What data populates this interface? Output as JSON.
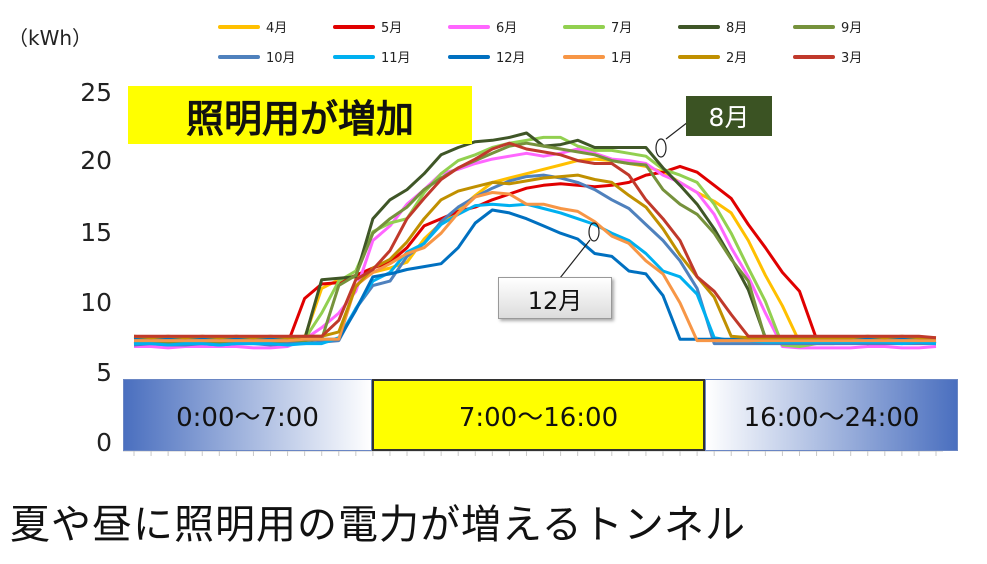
{
  "unit_label": "（kWh）",
  "annotations": {
    "title_box": "照明用が増加",
    "aug_label": "8月",
    "dec_label": "12月"
  },
  "time_bands": {
    "left": "0:00～7:00",
    "middle": "7:00～16:00",
    "right": "16:00～24:00"
  },
  "caption": "夏や昼に照明用の電力が増えるトンネル",
  "chart_data": {
    "type": "line",
    "x": [
      0,
      1,
      2,
      3,
      4,
      5,
      6,
      7,
      8,
      9,
      10,
      11,
      12,
      13,
      14,
      15,
      16,
      17,
      18,
      19,
      20,
      21,
      22,
      23,
      24,
      25,
      26,
      27,
      28,
      29,
      30,
      31,
      32,
      33,
      34,
      35,
      36,
      37,
      38,
      39,
      40,
      41,
      42,
      43,
      44,
      45,
      46,
      47
    ],
    "yticks": [
      0,
      5,
      10,
      15,
      20,
      25
    ],
    "ylim": [
      0,
      25
    ],
    "series": [
      {
        "name": "4月",
        "color": "#ffc000",
        "values": [
          7.7,
          7.8,
          7.7,
          7.7,
          7.7,
          7.8,
          7.7,
          7.7,
          7.7,
          7.7,
          7.8,
          11.2,
          11.8,
          12.0,
          12.3,
          12.6,
          13.0,
          14.6,
          15.7,
          16.6,
          17.6,
          18.5,
          18.8,
          19.1,
          19.4,
          19.7,
          20.0,
          20.1,
          20.0,
          19.8,
          19.6,
          19.2,
          18.5,
          17.8,
          17.2,
          16.4,
          14.5,
          12.1,
          10.0,
          7.5,
          7.5,
          7.6,
          7.6,
          7.6,
          7.6,
          7.6,
          7.7,
          7.6
        ]
      },
      {
        "name": "5月",
        "color": "#e00000",
        "values": [
          7.4,
          7.5,
          7.5,
          7.5,
          7.5,
          7.5,
          7.4,
          7.5,
          7.5,
          7.4,
          10.5,
          11.5,
          11.6,
          12.1,
          12.6,
          13.0,
          14.0,
          15.5,
          16.0,
          16.5,
          16.8,
          17.3,
          17.7,
          18.1,
          18.3,
          18.4,
          18.3,
          18.2,
          18.3,
          18.5,
          19.0,
          19.2,
          19.6,
          19.2,
          18.3,
          17.4,
          15.6,
          14.0,
          12.3,
          11.0,
          7.7,
          7.7,
          7.7,
          7.7,
          7.7,
          7.6,
          7.6,
          7.5
        ]
      },
      {
        "name": "6月",
        "color": "#ff66ff",
        "values": [
          7.2,
          7.2,
          7.1,
          7.2,
          7.2,
          7.2,
          7.2,
          7.1,
          7.1,
          7.2,
          7.7,
          8.5,
          9.5,
          11.0,
          14.5,
          15.5,
          17.0,
          18.0,
          19.1,
          19.4,
          19.8,
          20.1,
          20.3,
          20.5,
          20.3,
          20.5,
          20.8,
          20.5,
          20.1,
          20.0,
          19.8,
          19.0,
          18.5,
          17.8,
          16.3,
          14.0,
          12.0,
          9.5,
          7.2,
          7.1,
          7.1,
          7.1,
          7.1,
          7.2,
          7.2,
          7.1,
          7.1,
          7.2
        ]
      },
      {
        "name": "7月",
        "color": "#92d050",
        "values": [
          7.6,
          7.6,
          7.6,
          7.6,
          7.6,
          7.5,
          7.6,
          7.6,
          7.6,
          7.6,
          7.7,
          9.5,
          11.7,
          12.4,
          15.1,
          15.7,
          16.0,
          17.8,
          19.1,
          20.0,
          20.4,
          20.9,
          21.2,
          21.4,
          21.6,
          21.6,
          21.0,
          20.7,
          20.7,
          20.5,
          20.3,
          19.4,
          19.0,
          18.5,
          17.0,
          15.0,
          12.6,
          10.3,
          7.3,
          7.2,
          7.4,
          7.4,
          7.5,
          7.4,
          7.5,
          7.5,
          7.5,
          7.4
        ]
      },
      {
        "name": "8月",
        "color": "#3f5627",
        "values": [
          7.7,
          7.7,
          7.7,
          7.7,
          7.7,
          7.7,
          7.7,
          7.7,
          7.7,
          7.7,
          7.7,
          11.8,
          11.9,
          12.0,
          16.0,
          17.3,
          18.0,
          19.1,
          20.4,
          20.9,
          21.3,
          21.4,
          21.6,
          21.9,
          21.0,
          21.1,
          21.4,
          20.9,
          20.9,
          20.9,
          20.9,
          19.5,
          18.3,
          17.0,
          15.3,
          13.3,
          11.1,
          7.8,
          7.7,
          7.7,
          7.7,
          7.7,
          7.7,
          7.7,
          7.7,
          7.7,
          7.7,
          7.7
        ]
      },
      {
        "name": "9月",
        "color": "#76923c",
        "values": [
          7.5,
          7.5,
          7.5,
          7.5,
          7.5,
          7.5,
          7.5,
          7.5,
          7.5,
          7.5,
          7.6,
          7.7,
          11.4,
          12.1,
          15.0,
          16.0,
          16.8,
          18.0,
          18.8,
          19.5,
          20.0,
          20.5,
          21.0,
          21.2,
          21.0,
          20.8,
          20.6,
          20.4,
          20.0,
          19.8,
          19.7,
          18.0,
          17.0,
          16.3,
          15.0,
          13.2,
          11.7,
          7.7,
          7.5,
          7.5,
          7.5,
          7.5,
          7.5,
          7.4,
          7.5,
          7.5,
          7.5,
          7.4
        ]
      },
      {
        "name": "10月",
        "color": "#4f81bd",
        "values": [
          7.3,
          7.4,
          7.3,
          7.3,
          7.4,
          7.3,
          7.4,
          7.4,
          7.3,
          7.4,
          7.4,
          7.5,
          7.6,
          9.8,
          11.4,
          11.7,
          13.4,
          14.3,
          15.8,
          16.8,
          17.5,
          18.1,
          18.6,
          18.9,
          19.0,
          18.8,
          18.5,
          18.0,
          17.3,
          16.7,
          15.6,
          14.5,
          13.1,
          11.2,
          7.4,
          7.4,
          7.4,
          7.4,
          7.4,
          7.4,
          7.4,
          7.4,
          7.4,
          7.4,
          7.4,
          7.4,
          7.4,
          7.4
        ]
      },
      {
        "name": "11月",
        "color": "#00b0f0",
        "values": [
          7.4,
          7.4,
          7.3,
          7.4,
          7.4,
          7.3,
          7.4,
          7.4,
          7.4,
          7.3,
          7.4,
          7.4,
          7.8,
          9.8,
          11.7,
          12.3,
          13.7,
          14.3,
          15.6,
          16.3,
          16.9,
          17.0,
          16.9,
          17.0,
          16.7,
          16.4,
          16.0,
          15.6,
          15.0,
          14.5,
          13.6,
          12.4,
          12.0,
          10.8,
          7.8,
          7.6,
          7.6,
          7.5,
          7.5,
          7.5,
          7.5,
          7.5,
          7.5,
          7.5,
          7.5,
          7.4,
          7.5,
          7.4
        ]
      },
      {
        "name": "12月",
        "color": "#0070c0",
        "values": [
          7.7,
          7.7,
          7.7,
          7.7,
          7.7,
          7.7,
          7.7,
          7.7,
          7.7,
          7.7,
          7.7,
          7.7,
          7.7,
          9.7,
          12.0,
          12.2,
          12.5,
          12.7,
          12.9,
          14.0,
          15.7,
          16.6,
          16.4,
          16.0,
          15.5,
          15.0,
          14.6,
          13.6,
          13.4,
          12.4,
          12.2,
          10.7,
          7.7,
          7.7,
          7.7,
          7.7,
          7.7,
          7.7,
          7.7,
          7.7,
          7.7,
          7.7,
          7.7,
          7.7,
          7.7,
          7.7,
          7.7,
          7.7
        ]
      },
      {
        "name": "1月",
        "color": "#f79646",
        "values": [
          7.6,
          7.6,
          7.6,
          7.6,
          7.6,
          7.6,
          7.6,
          7.6,
          7.6,
          7.6,
          7.7,
          7.7,
          7.7,
          11.4,
          12.3,
          12.9,
          13.6,
          14.0,
          15.0,
          16.4,
          17.5,
          17.8,
          17.7,
          17.0,
          17.0,
          16.7,
          16.5,
          15.8,
          14.8,
          14.3,
          13.1,
          12.2,
          10.2,
          7.6,
          7.6,
          7.6,
          7.6,
          7.6,
          7.6,
          7.6,
          7.6,
          7.6,
          7.6,
          7.6,
          7.6,
          7.6,
          7.6,
          7.6
        ]
      },
      {
        "name": "2月",
        "color": "#c09000",
        "values": [
          7.9,
          7.8,
          7.9,
          7.8,
          7.9,
          7.8,
          7.9,
          7.8,
          7.9,
          7.8,
          7.9,
          7.9,
          8.2,
          11.3,
          12.6,
          13.2,
          14.4,
          16.0,
          17.3,
          17.9,
          18.2,
          18.5,
          18.4,
          18.6,
          18.8,
          18.9,
          19.0,
          18.7,
          18.5,
          17.6,
          16.8,
          15.3,
          13.5,
          12.0,
          10.6,
          7.9,
          7.8,
          7.8,
          7.8,
          7.8,
          7.8,
          7.8,
          7.8,
          7.9,
          7.8,
          7.9,
          7.8,
          7.8
        ]
      },
      {
        "name": "3月",
        "color": "#c0392b",
        "values": [
          7.9,
          7.9,
          7.9,
          7.9,
          7.9,
          7.9,
          7.9,
          7.9,
          7.9,
          7.9,
          7.9,
          7.9,
          9.0,
          11.8,
          12.5,
          13.8,
          16.0,
          17.4,
          18.7,
          19.5,
          20.1,
          20.8,
          21.2,
          20.8,
          20.6,
          20.4,
          20.0,
          19.8,
          19.8,
          19.0,
          17.3,
          16.0,
          14.5,
          12.0,
          11.0,
          9.4,
          7.9,
          7.9,
          7.9,
          7.9,
          7.9,
          7.9,
          7.9,
          7.9,
          7.9,
          7.9,
          7.9,
          7.8
        ]
      }
    ]
  }
}
